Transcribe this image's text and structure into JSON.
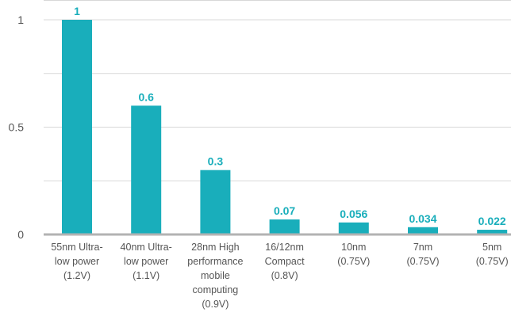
{
  "chart_data": {
    "type": "bar",
    "title": "",
    "xlabel": "",
    "ylabel": "",
    "ylim": [
      0,
      1.15
    ],
    "yticks": [
      {
        "value": 0,
        "label": "0"
      },
      {
        "value": 0.5,
        "label": "0.5"
      },
      {
        "value": 1,
        "label": "1"
      }
    ],
    "grid": true,
    "bar_color": "#19aebb",
    "axis_color": "#b3b3b3",
    "grid_color": "#d8d8d8",
    "label_color": "#19aebb",
    "categories": [
      {
        "lines": [
          "55nm Ultra-",
          "low power",
          "(1.2V)"
        ]
      },
      {
        "lines": [
          "40nm Ultra-",
          "low power",
          "(1.1V)"
        ]
      },
      {
        "lines": [
          "28nm High",
          "performance",
          "mobile",
          "computing",
          "(0.9V)"
        ]
      },
      {
        "lines": [
          "16/12nm",
          "Compact",
          "(0.8V)"
        ]
      },
      {
        "lines": [
          "10nm",
          "(0.75V)"
        ]
      },
      {
        "lines": [
          "7nm",
          "(0.75V)"
        ]
      },
      {
        "lines": [
          "5nm",
          "(0.75V)"
        ]
      }
    ],
    "values": [
      1,
      0.6,
      0.3,
      0.07,
      0.056,
      0.034,
      0.022
    ],
    "data_labels": [
      "1",
      "0.6",
      "0.3",
      "0.07",
      "0.056",
      "0.034",
      "0.022"
    ]
  }
}
